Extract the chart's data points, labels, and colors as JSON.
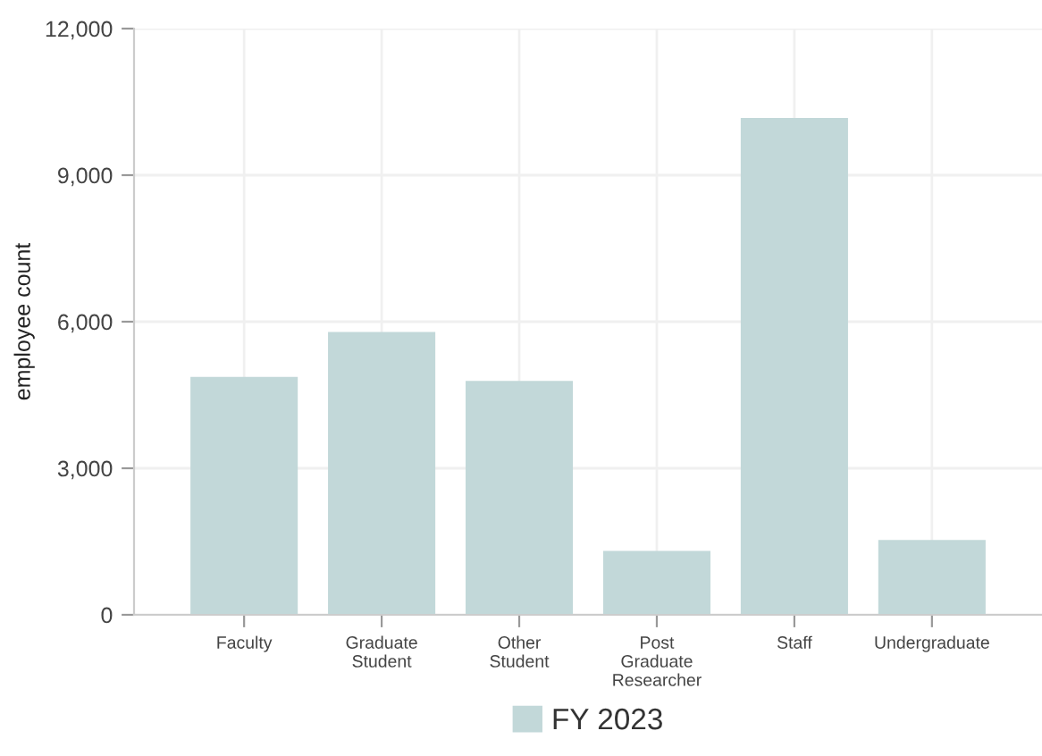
{
  "chart_data": {
    "type": "bar",
    "ylabel": "employee count",
    "categories": [
      "Faculty",
      "Graduate\nStudent",
      "Other\nStudent",
      "Post\nGraduate\nResearcher",
      "Staff",
      "Undergraduate"
    ],
    "series": [
      {
        "name": "FY 2023",
        "color": "#c2d8d9",
        "values": [
          4870,
          5790,
          4790,
          1310,
          10170,
          1530
        ]
      }
    ],
    "ylim": [
      0,
      12000
    ],
    "yticks": [
      {
        "value": 0,
        "label": "0"
      },
      {
        "value": 3000,
        "label": "3,000"
      },
      {
        "value": 6000,
        "label": "6,000"
      },
      {
        "value": 9000,
        "label": "9,000"
      },
      {
        "value": 12000,
        "label": "12,000"
      }
    ],
    "grid": true,
    "legend": "bottom"
  }
}
